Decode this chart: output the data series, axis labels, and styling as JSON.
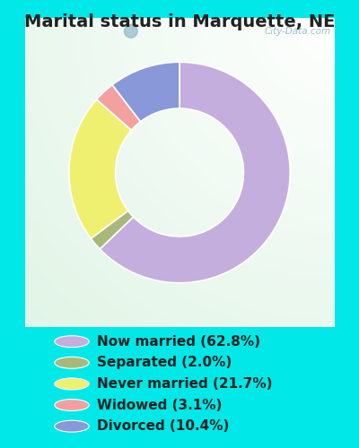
{
  "title": "Marital status in Marquette, NE",
  "slices": [
    {
      "label": "Now married (62.8%)",
      "value": 62.8,
      "color": "#C4AEDE"
    },
    {
      "label": "Separated (2.0%)",
      "value": 2.0,
      "color": "#A8B87A"
    },
    {
      "label": "Never married (21.7%)",
      "value": 21.7,
      "color": "#F0F070"
    },
    {
      "label": "Widowed (3.1%)",
      "value": 3.1,
      "color": "#F4A0A0"
    },
    {
      "label": "Divorced (10.4%)",
      "value": 10.4,
      "color": "#8898D8"
    }
  ],
  "outer_bg": "#00E8E8",
  "title_fontsize": 14,
  "legend_fontsize": 11,
  "watermark": "City-Data.com",
  "donut_width": 0.42,
  "start_angle": 90
}
